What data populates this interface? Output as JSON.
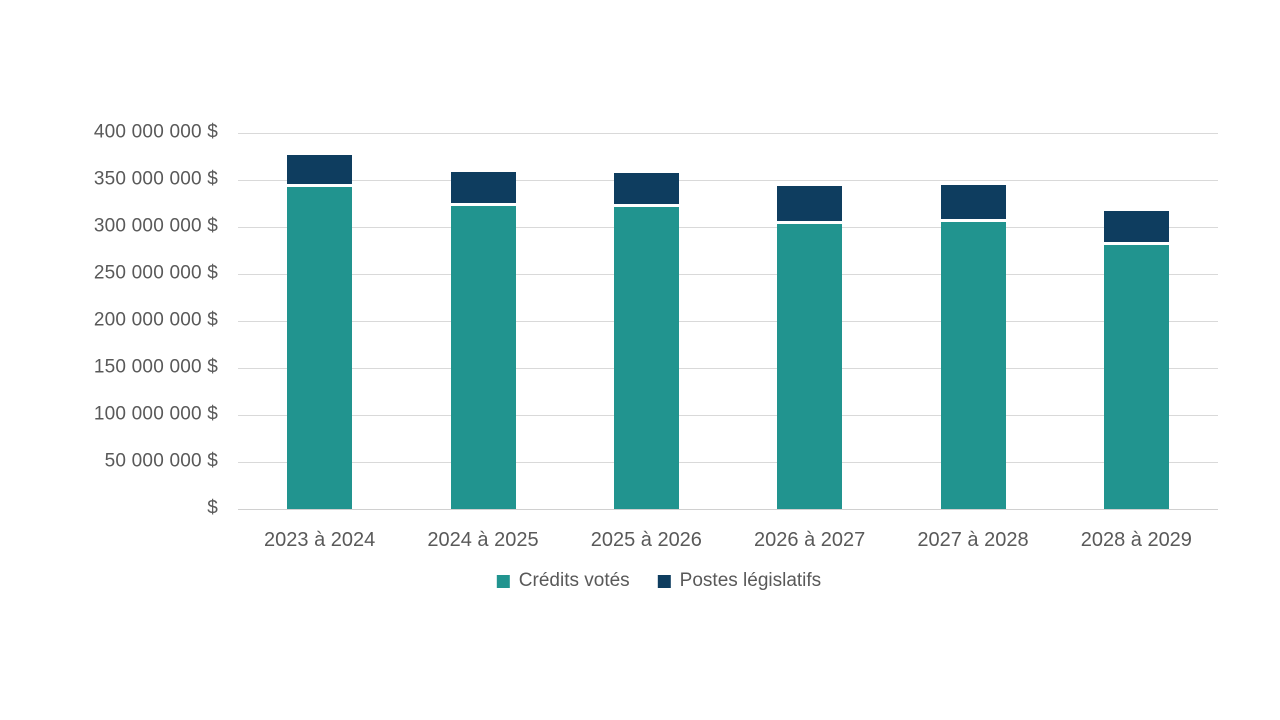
{
  "chart_data": {
    "type": "bar",
    "stacked": true,
    "title": "",
    "xlabel": "",
    "ylabel": "",
    "categories": [
      "2023 à 2024",
      "2024 à 2025",
      "2025 à 2026",
      "2026 à 2027",
      "2027 à 2028",
      "2028 à 2029"
    ],
    "series": [
      {
        "name": "Crédits votés",
        "color": "#21948f",
        "values": [
          343000000,
          322000000,
          321000000,
          303000000,
          305000000,
          281000000
        ]
      },
      {
        "name": "Postes législatifs",
        "color": "#0e3d5f",
        "values": [
          34000000,
          37000000,
          36000000,
          41000000,
          40000000,
          36000000
        ]
      }
    ],
    "ylim": [
      0,
      400000000
    ],
    "ytick_step": 50000000,
    "ytick_labels": [
      "$",
      "50 000 000 $",
      "100 000 000 $",
      "150 000 000 $",
      "200 000 000 $",
      "250 000 000 $",
      "300 000 000 $",
      "350 000 000 $",
      "400 000 000 $"
    ],
    "grid": true,
    "legend_position": "bottom",
    "colors": {
      "text": "#595959",
      "gridline": "#d9d9d9",
      "axis_line": "#d0d0d0",
      "background": "#ffffff",
      "segment_separator": "#ffffff"
    }
  }
}
